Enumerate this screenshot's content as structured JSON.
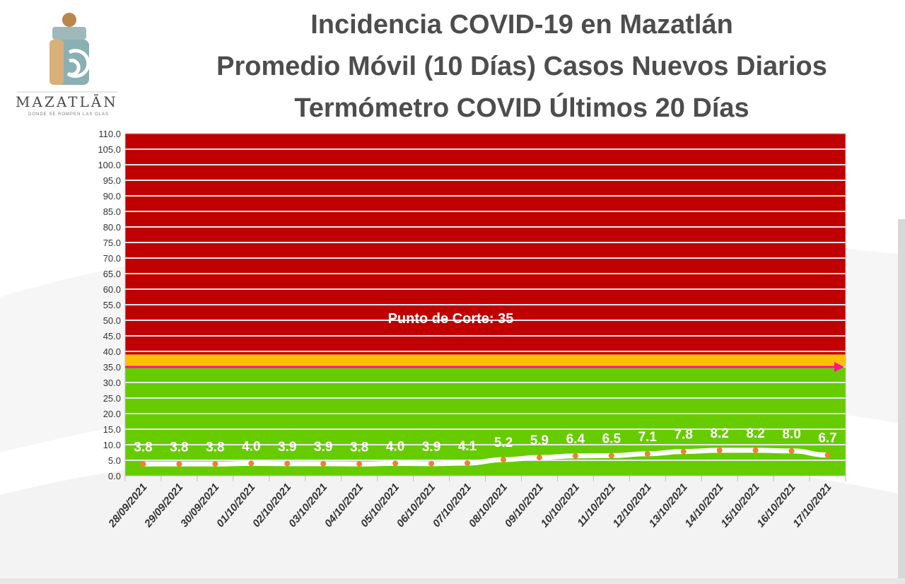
{
  "logo": {
    "name": "MAZATLĀN",
    "tagline": "DONDE SE ROMPEN LAS OLAS"
  },
  "header": {
    "title_line1": "Incidencia COVID-19 en Mazatlán",
    "title_line2": "Promedio Móvil (10 Días) Casos Nuevos Diarios",
    "title_line3": "Termómetro COVID Últimos 20 Días"
  },
  "chart_data": {
    "type": "line",
    "categories": [
      "28/09/2021",
      "29/09/2021",
      "30/09/2021",
      "01/10/2021",
      "02/10/2021",
      "03/10/2021",
      "04/10/2021",
      "05/10/2021",
      "06/10/2021",
      "07/10/2021",
      "08/10/2021",
      "09/10/2021",
      "10/10/2021",
      "11/10/2021",
      "12/10/2021",
      "13/10/2021",
      "14/10/2021",
      "15/10/2021",
      "16/10/2021",
      "17/10/2021"
    ],
    "values": [
      3.8,
      3.8,
      3.8,
      4.0,
      3.9,
      3.9,
      3.8,
      4.0,
      3.9,
      4.1,
      5.2,
      5.9,
      6.4,
      6.5,
      7.1,
      7.8,
      8.2,
      8.2,
      8.0,
      6.7
    ],
    "value_labels": [
      "3.8",
      "3.8",
      "3.8",
      "4.0",
      "3.9",
      "3.9",
      "3.8",
      "4.0",
      "3.9",
      "4.1",
      "5.2",
      "5.9",
      "6.4",
      "6.5",
      "7.1",
      "7.8",
      "8.2",
      "8.2",
      "8.0",
      "6.7"
    ],
    "ylim": [
      0,
      110
    ],
    "ytick_step": 5,
    "ytick_labels": [
      "0.0",
      "5.0",
      "10.0",
      "15.0",
      "20.0",
      "25.0",
      "30.0",
      "35.0",
      "40.0",
      "45.0",
      "50.0",
      "55.0",
      "60.0",
      "65.0",
      "70.0",
      "75.0",
      "80.0",
      "85.0",
      "90.0",
      "95.0",
      "100.0",
      "105.0",
      "110.0"
    ],
    "grid": true,
    "cutoff": {
      "value": 35,
      "label": "Punto de Corte: 35"
    },
    "zones": [
      {
        "name": "green",
        "from": 0,
        "to": 35,
        "color": "#66cc00"
      },
      {
        "name": "yellow",
        "from": 35,
        "to": 39,
        "color": "#ffc000"
      },
      {
        "name": "red",
        "from": 39,
        "to": 110,
        "color": "#c00000"
      }
    ],
    "colors": {
      "line": "#ffffff",
      "marker": "#f08030",
      "cutoff_arrow": "#ff1493",
      "grid": "#e8e8e8",
      "value_label": "#ffffff"
    }
  }
}
